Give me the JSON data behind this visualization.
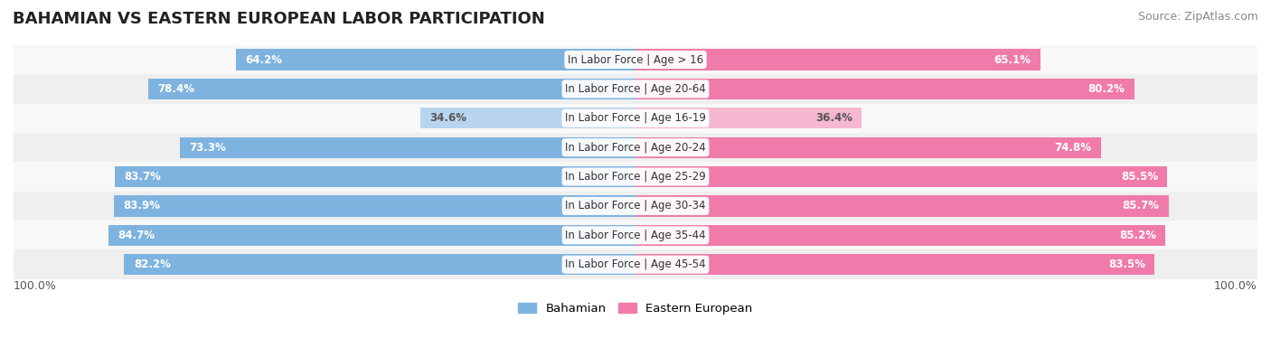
{
  "title": "BAHAMIAN VS EASTERN EUROPEAN LABOR PARTICIPATION",
  "source": "Source: ZipAtlas.com",
  "categories": [
    "In Labor Force | Age > 16",
    "In Labor Force | Age 20-64",
    "In Labor Force | Age 16-19",
    "In Labor Force | Age 20-24",
    "In Labor Force | Age 25-29",
    "In Labor Force | Age 30-34",
    "In Labor Force | Age 35-44",
    "In Labor Force | Age 45-54"
  ],
  "bahamian": [
    64.2,
    78.4,
    34.6,
    73.3,
    83.7,
    83.9,
    84.7,
    82.2
  ],
  "eastern_european": [
    65.1,
    80.2,
    36.4,
    74.8,
    85.5,
    85.7,
    85.2,
    83.5
  ],
  "bahamian_color": "#7EB3E0",
  "bahamian_light_color": "#B8D4EE",
  "eastern_european_color": "#F07BAA",
  "eastern_european_light_color": "#F5B8D0",
  "bar_bg_color": "#F0F0F0",
  "row_bg_even": "#F8F8F8",
  "row_bg_odd": "#EFEFEF",
  "text_color_white": "#FFFFFF",
  "text_color_dark": "#555555",
  "legend_bahamian": "Bahamian",
  "legend_eastern_european": "Eastern European",
  "max_value": 100.0,
  "label_fontsize": 8.5,
  "category_fontsize": 8.5,
  "title_fontsize": 13,
  "bar_height": 0.72
}
